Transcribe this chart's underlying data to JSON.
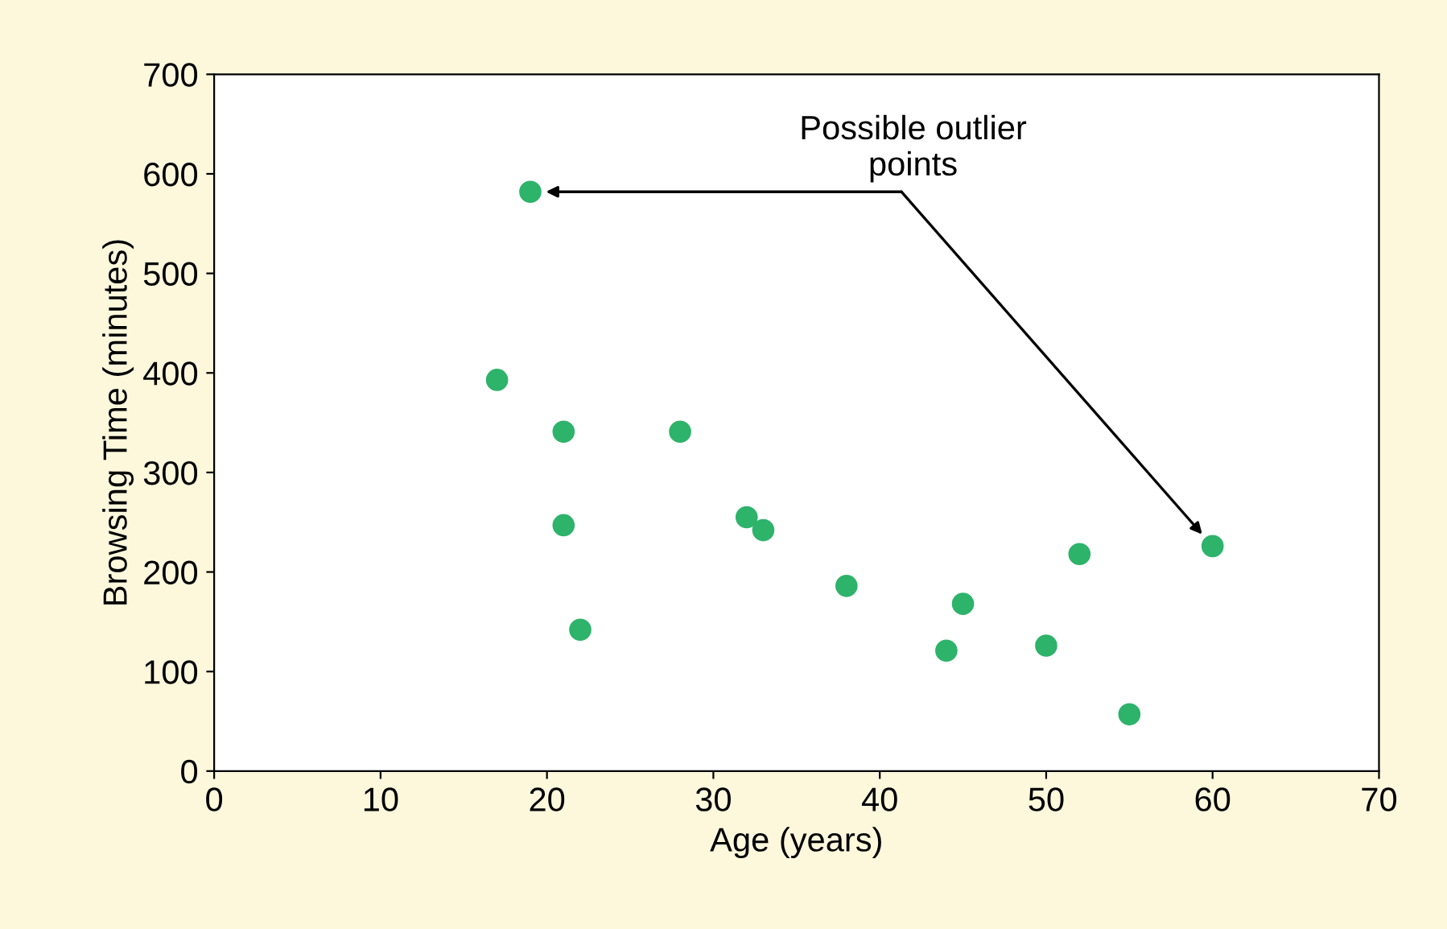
{
  "chart_data": {
    "type": "scatter",
    "xlabel": "Age (years)",
    "ylabel": "Browsing Time (minutes)",
    "x": [
      19,
      17,
      21,
      28,
      21,
      22,
      32,
      33,
      38,
      45,
      44,
      50,
      52,
      55,
      60
    ],
    "series": [
      {
        "color": "#2eb36b",
        "values": [
          582,
          393,
          341,
          341,
          247,
          142,
          255,
          242,
          186,
          168,
          121,
          126,
          218,
          57,
          226
        ]
      }
    ],
    "xlim": [
      0,
      70
    ],
    "xticks": [
      0,
      10,
      20,
      30,
      40,
      50,
      60,
      70
    ],
    "ylim": [
      0,
      700
    ],
    "yticks": [
      0,
      100,
      200,
      300,
      400,
      500,
      600,
      700
    ],
    "grid": false,
    "legend": false,
    "marker": "circle",
    "annotations": [
      "Possible outlier\npoints"
    ]
  }
}
